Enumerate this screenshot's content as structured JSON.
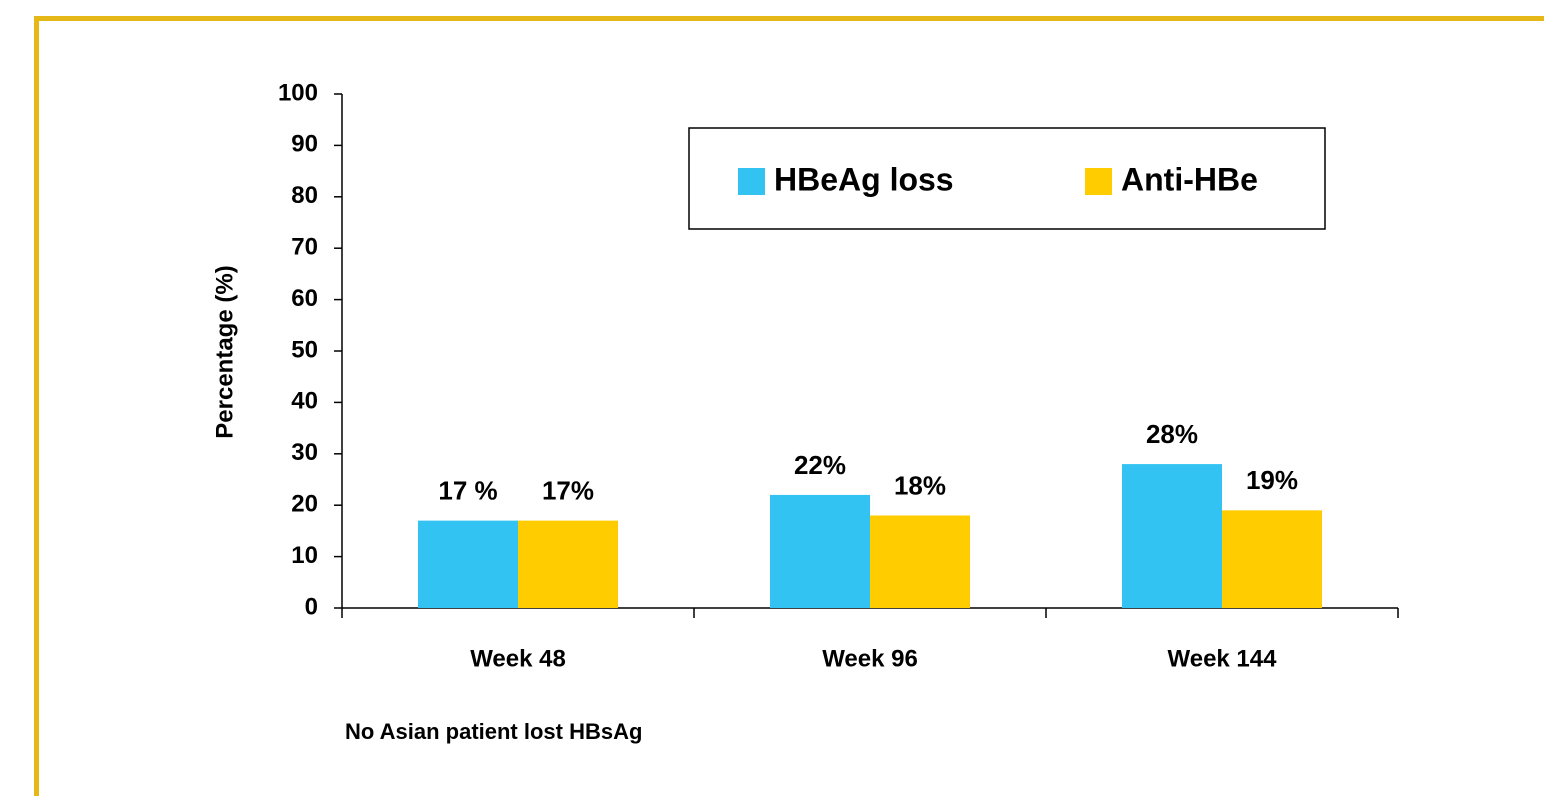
{
  "chart_data": {
    "type": "bar",
    "ylabel": "Percentage (%)",
    "footnote": "No Asian patient lost HBsAg",
    "categories": [
      "Week 48",
      "Week 96",
      "Week 144"
    ],
    "series": [
      {
        "name": "HBeAg loss",
        "color": "#33c3f3",
        "values": [
          17,
          22,
          28
        ],
        "value_labels": [
          "17 %",
          "22%",
          "28%"
        ]
      },
      {
        "name": "Anti-HBe",
        "color": "#ffcc00",
        "values": [
          17,
          18,
          19
        ],
        "value_labels": [
          "17%",
          "18%",
          "19%"
        ]
      }
    ],
    "ylim": [
      0,
      100
    ],
    "yticks": [
      0,
      10,
      20,
      30,
      40,
      50,
      60,
      70,
      80,
      90,
      100
    ]
  }
}
